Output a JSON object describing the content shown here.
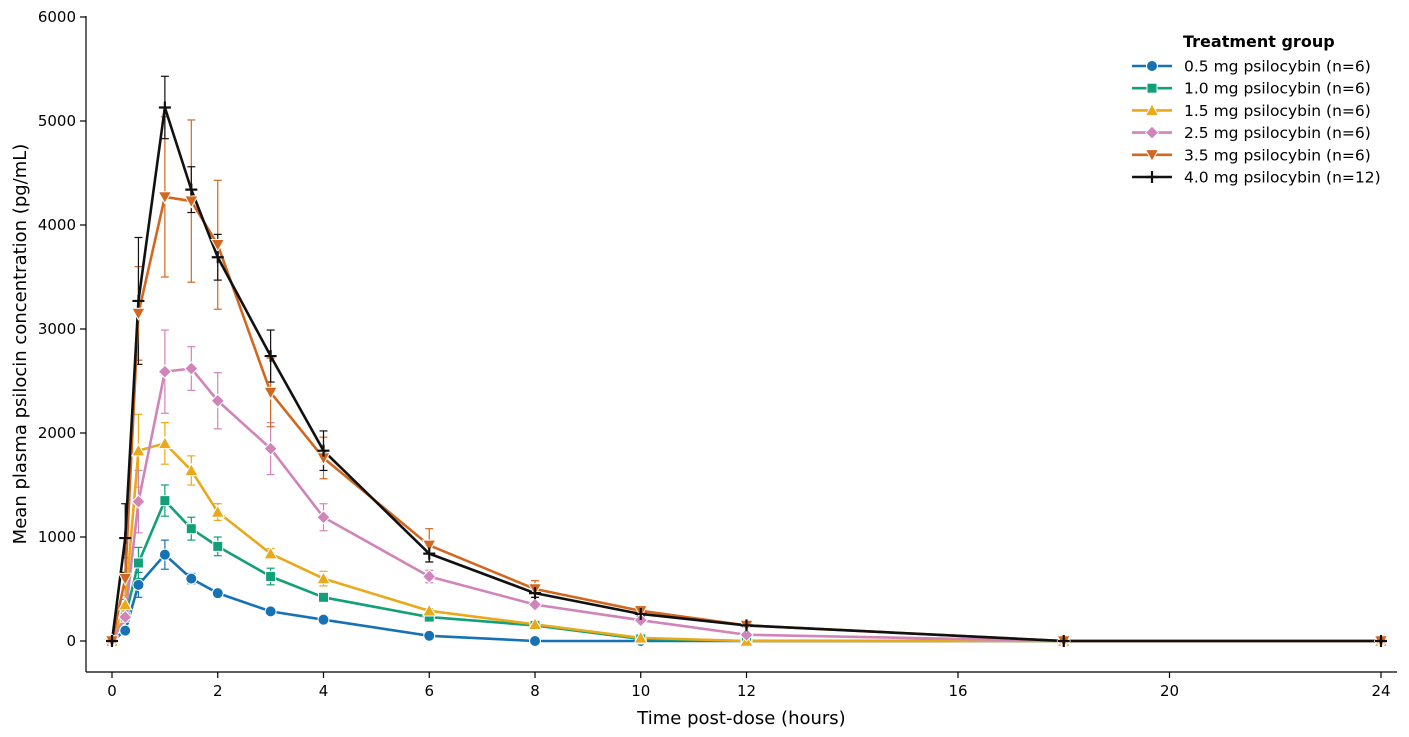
{
  "chart_data": {
    "type": "line",
    "title": "",
    "xlabel": "Time post-dose (hours)",
    "ylabel": "Mean plasma psilocin concentration (pg/mL)",
    "xlim": [
      -0.5,
      24.5
    ],
    "ylim": [
      -300,
      6000
    ],
    "xticks": [
      0,
      2,
      4,
      6,
      8,
      10,
      12,
      16,
      20,
      24
    ],
    "yticks": [
      0,
      1000,
      2000,
      3000,
      4000,
      5000,
      6000
    ],
    "grid": false,
    "legend": {
      "title": "Treatment group",
      "placement": "top-right"
    },
    "series": [
      {
        "name": "0.5 mg psilocybin (n=6)",
        "color": "#1672b5",
        "marker": "circle",
        "x": [
          0,
          0.25,
          0.5,
          1,
          1.5,
          2,
          3,
          4,
          6,
          8,
          10,
          12,
          18,
          24
        ],
        "y": [
          0,
          100,
          540,
          830,
          600,
          460,
          285,
          205,
          50,
          0,
          0,
          0,
          0,
          0
        ],
        "err": [
          0,
          30,
          120,
          140,
          50,
          35,
          20,
          15,
          10,
          0,
          0,
          0,
          0,
          0
        ]
      },
      {
        "name": "1.0 mg psilocybin (n=6)",
        "color": "#12a078",
        "marker": "square",
        "x": [
          0,
          0.25,
          0.5,
          1,
          1.5,
          2,
          3,
          4,
          6,
          8,
          10,
          12,
          18,
          24
        ],
        "y": [
          0,
          230,
          750,
          1350,
          1080,
          910,
          620,
          420,
          230,
          150,
          20,
          0,
          0,
          0
        ],
        "err": [
          0,
          60,
          150,
          150,
          110,
          90,
          80,
          40,
          20,
          15,
          10,
          0,
          0,
          0
        ]
      },
      {
        "name": "1.5 mg psilocybin (n=6)",
        "color": "#e9a91b",
        "marker": "triangle-up",
        "x": [
          0,
          0.25,
          0.5,
          1,
          1.5,
          2,
          3,
          4,
          6,
          8,
          10,
          12,
          18,
          24
        ],
        "y": [
          0,
          350,
          1830,
          1900,
          1640,
          1240,
          840,
          600,
          290,
          160,
          30,
          0,
          0,
          0
        ],
        "err": [
          0,
          90,
          350,
          200,
          140,
          80,
          50,
          70,
          20,
          15,
          10,
          0,
          0,
          0
        ]
      },
      {
        "name": "2.5 mg psilocybin (n=6)",
        "color": "#d184b9",
        "marker": "diamond",
        "x": [
          0,
          0.25,
          0.5,
          1,
          1.5,
          2,
          3,
          4,
          6,
          8,
          10,
          12,
          18,
          24
        ],
        "y": [
          0,
          230,
          1340,
          2590,
          2620,
          2310,
          1850,
          1190,
          620,
          350,
          200,
          60,
          0,
          0
        ],
        "err": [
          0,
          60,
          300,
          400,
          210,
          270,
          250,
          130,
          60,
          30,
          20,
          15,
          0,
          0
        ]
      },
      {
        "name": "3.5 mg psilocybin (n=6)",
        "color": "#d26820",
        "marker": "triangle-down",
        "x": [
          0,
          0.25,
          0.5,
          1,
          1.5,
          2,
          3,
          4,
          6,
          8,
          10,
          12,
          18,
          24
        ],
        "y": [
          0,
          600,
          3150,
          4270,
          4230,
          3810,
          2390,
          1760,
          920,
          500,
          290,
          150,
          0,
          0
        ],
        "err": [
          0,
          200,
          450,
          770,
          780,
          620,
          330,
          200,
          160,
          80,
          30,
          15,
          0,
          0
        ]
      },
      {
        "name": "4.0 mg psilocybin (n=12)",
        "color": "#111111",
        "marker": "plus",
        "x": [
          0,
          0.25,
          0.5,
          1,
          1.5,
          2,
          3,
          4,
          6,
          8,
          10,
          12,
          18,
          24
        ],
        "y": [
          0,
          990,
          3270,
          5130,
          4340,
          3690,
          2740,
          1830,
          840,
          460,
          260,
          150,
          0,
          0
        ],
        "err": [
          0,
          330,
          610,
          300,
          220,
          220,
          250,
          190,
          80,
          40,
          20,
          10,
          0,
          0
        ]
      }
    ]
  }
}
